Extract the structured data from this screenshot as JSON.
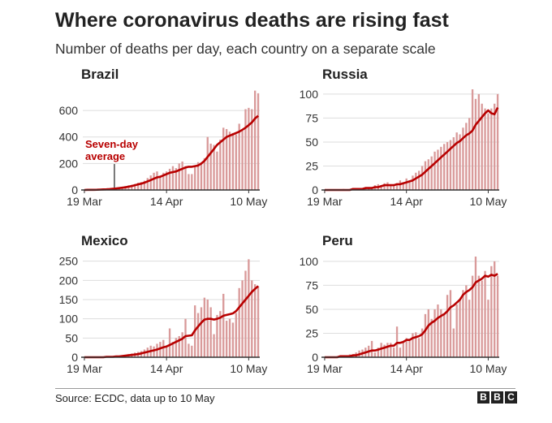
{
  "title": "Where coronavirus deaths are rising fast",
  "subtitle": "Number of deaths per day, each country on a separate scale",
  "source": "Source: ECDC, data up to 10 May",
  "logo": [
    "B",
    "B",
    "C"
  ],
  "colors": {
    "bar": "#d99a9a",
    "line": "#b80000",
    "axis": "#333333",
    "grid": "#dddddd"
  },
  "chart_data": [
    {
      "type": "bar",
      "title": "Brazil",
      "x_ticks": [
        "19 Mar",
        "14 Apr",
        "10 May"
      ],
      "y_ticks": [
        0,
        200,
        400,
        600
      ],
      "ylim": [
        0,
        760
      ],
      "annotation": [
        "Seven-day",
        "average"
      ],
      "series": [
        {
          "values": [
            0,
            1,
            1,
            2,
            3,
            4,
            6,
            8,
            11,
            14,
            16,
            20,
            24,
            30,
            35,
            40,
            45,
            55,
            60,
            70,
            90,
            110,
            130,
            140,
            100,
            130,
            140,
            160,
            180,
            165,
            200,
            215,
            180,
            120,
            120,
            180,
            210,
            200,
            240,
            400,
            350,
            340,
            290,
            380,
            470,
            460,
            440,
            430,
            420,
            500,
            450,
            610,
            620,
            610,
            750,
            730
          ]
        },
        {
          "values": [
            0,
            1,
            1,
            1,
            2,
            3,
            4,
            5,
            7,
            9,
            11,
            14,
            17,
            20,
            25,
            30,
            36,
            42,
            48,
            55,
            65,
            75,
            85,
            95,
            100,
            110,
            120,
            130,
            135,
            140,
            150,
            160,
            170,
            175,
            175,
            180,
            185,
            200,
            220,
            250,
            280,
            310,
            340,
            360,
            380,
            400,
            410,
            420,
            430,
            440,
            455,
            470,
            490,
            510,
            540,
            560
          ]
        }
      ]
    },
    {
      "type": "bar",
      "title": "Russia",
      "x_ticks": [
        "19 Mar",
        "14 Apr",
        "10 May"
      ],
      "y_ticks": [
        0,
        25,
        50,
        75,
        100
      ],
      "ylim": [
        0,
        105
      ],
      "series": [
        {
          "values": [
            0,
            0,
            0,
            0,
            0,
            0,
            1,
            0,
            1,
            1,
            2,
            1,
            2,
            2,
            3,
            3,
            5,
            6,
            4,
            7,
            8,
            5,
            4,
            7,
            10,
            8,
            12,
            10,
            15,
            18,
            20,
            25,
            30,
            32,
            35,
            40,
            42,
            45,
            48,
            50,
            52,
            55,
            60,
            58,
            65,
            70,
            75,
            105,
            95,
            100,
            90,
            85,
            80,
            85,
            90,
            100
          ]
        },
        {
          "values": [
            0,
            0,
            0,
            0,
            0,
            0,
            0,
            0,
            0,
            1,
            1,
            1,
            1,
            2,
            2,
            2,
            3,
            3,
            4,
            5,
            5,
            5,
            5,
            6,
            6,
            7,
            8,
            9,
            10,
            12,
            14,
            16,
            19,
            22,
            25,
            28,
            31,
            34,
            37,
            40,
            43,
            46,
            49,
            51,
            54,
            57,
            59,
            62,
            68,
            72,
            76,
            80,
            83,
            80,
            79,
            86
          ]
        }
      ]
    },
    {
      "type": "bar",
      "title": "Mexico",
      "x_ticks": [
        "19 Mar",
        "14 Apr",
        "10 May"
      ],
      "y_ticks": [
        0,
        50,
        100,
        150,
        200,
        250
      ],
      "ylim": [
        0,
        262
      ],
      "series": [
        {
          "values": [
            0,
            0,
            0,
            0,
            0,
            1,
            1,
            1,
            2,
            2,
            3,
            4,
            5,
            6,
            8,
            10,
            12,
            14,
            16,
            20,
            25,
            30,
            28,
            35,
            40,
            45,
            30,
            75,
            40,
            50,
            55,
            65,
            100,
            35,
            30,
            135,
            115,
            130,
            155,
            150,
            130,
            60,
            110,
            120,
            165,
            95,
            100,
            90,
            115,
            180,
            200,
            225,
            255,
            200,
            190,
            185
          ]
        },
        {
          "values": [
            0,
            0,
            0,
            0,
            0,
            0,
            0,
            1,
            1,
            1,
            2,
            2,
            3,
            4,
            5,
            6,
            7,
            8,
            10,
            12,
            14,
            16,
            18,
            20,
            23,
            26,
            28,
            32,
            36,
            40,
            44,
            48,
            55,
            56,
            57,
            70,
            80,
            90,
            98,
            100,
            100,
            98,
            100,
            103,
            108,
            110,
            112,
            114,
            120,
            130,
            140,
            150,
            160,
            170,
            178,
            185
          ]
        }
      ]
    },
    {
      "type": "bar",
      "title": "Peru",
      "x_ticks": [
        "19 Mar",
        "14 Apr",
        "10 May"
      ],
      "y_ticks": [
        0,
        25,
        50,
        75,
        100
      ],
      "ylim": [
        0,
        105
      ],
      "series": [
        {
          "values": [
            0,
            0,
            0,
            0,
            1,
            1,
            2,
            2,
            3,
            3,
            5,
            7,
            8,
            10,
            12,
            17,
            5,
            10,
            15,
            13,
            15,
            15,
            10,
            32,
            10,
            15,
            20,
            18,
            25,
            26,
            20,
            30,
            45,
            50,
            40,
            50,
            55,
            50,
            45,
            65,
            70,
            30,
            55,
            60,
            70,
            75,
            60,
            85,
            105,
            85,
            80,
            90,
            60,
            95,
            100,
            85
          ]
        },
        {
          "values": [
            0,
            0,
            0,
            0,
            0,
            1,
            1,
            1,
            1,
            2,
            2,
            3,
            4,
            5,
            6,
            7,
            7,
            8,
            9,
            10,
            11,
            12,
            12,
            15,
            15,
            16,
            18,
            18,
            20,
            21,
            22,
            24,
            28,
            33,
            36,
            38,
            41,
            43,
            45,
            48,
            52,
            54,
            57,
            60,
            65,
            68,
            70,
            73,
            78,
            80,
            82,
            85,
            84,
            86,
            85,
            87
          ]
        }
      ]
    }
  ]
}
